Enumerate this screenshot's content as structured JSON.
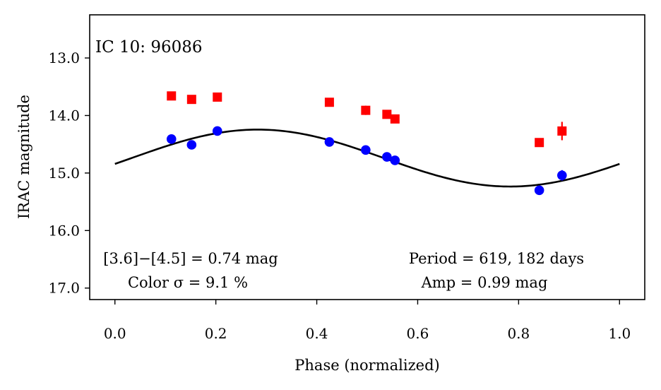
{
  "chart_data": {
    "type": "scatter",
    "title": "IC 10: 96086",
    "xlabel": "Phase (normalized)",
    "ylabel": "IRAC magnitude",
    "xlim": [
      -0.05,
      1.05
    ],
    "ylim": [
      17.2,
      12.25
    ],
    "y_inverted": true,
    "x_ticks": [
      {
        "value": 0.0,
        "label": "0.0"
      },
      {
        "value": 0.2,
        "label": "0.2"
      },
      {
        "value": 0.4,
        "label": "0.4"
      },
      {
        "value": 0.6,
        "label": "0.6"
      },
      {
        "value": 0.8,
        "label": "0.8"
      },
      {
        "value": 1.0,
        "label": "1.0"
      }
    ],
    "y_ticks": [
      {
        "value": 13.0,
        "label": "13.0"
      },
      {
        "value": 14.0,
        "label": "14.0"
      },
      {
        "value": 15.0,
        "label": "15.0"
      },
      {
        "value": 16.0,
        "label": "16.0"
      },
      {
        "value": 17.0,
        "label": "17.0"
      }
    ],
    "series": [
      {
        "name": "[4.5]",
        "marker": "square",
        "color": "#ff0000",
        "points": [
          {
            "x": 0.112,
            "y": 13.66,
            "err": 0.03
          },
          {
            "x": 0.152,
            "y": 13.72,
            "err": 0.03
          },
          {
            "x": 0.203,
            "y": 13.68,
            "err": 0.07
          },
          {
            "x": 0.425,
            "y": 13.77,
            "err": 0.03
          },
          {
            "x": 0.497,
            "y": 13.91,
            "err": 0.08
          },
          {
            "x": 0.539,
            "y": 13.98,
            "err": 0.03
          },
          {
            "x": 0.555,
            "y": 14.06,
            "err": 0.03
          },
          {
            "x": 0.841,
            "y": 14.47,
            "err": 0.03
          },
          {
            "x": 0.886,
            "y": 14.27,
            "err": 0.16
          }
        ]
      },
      {
        "name": "[3.6]",
        "marker": "circle",
        "color": "#0000ff",
        "points": [
          {
            "x": 0.112,
            "y": 14.41,
            "err": 0.03
          },
          {
            "x": 0.152,
            "y": 14.51,
            "err": 0.03
          },
          {
            "x": 0.203,
            "y": 14.27,
            "err": 0.07
          },
          {
            "x": 0.425,
            "y": 14.46,
            "err": 0.03
          },
          {
            "x": 0.497,
            "y": 14.6,
            "err": 0.03
          },
          {
            "x": 0.539,
            "y": 14.72,
            "err": 0.05
          },
          {
            "x": 0.555,
            "y": 14.78,
            "err": 0.03
          },
          {
            "x": 0.841,
            "y": 15.3,
            "err": 0.03
          },
          {
            "x": 0.886,
            "y": 15.04,
            "err": 0.09
          }
        ]
      }
    ],
    "fit": {
      "name": "sinusoidal fit",
      "color": "#000000",
      "mean": 14.74,
      "amplitude": 0.495,
      "phase_of_min_mag": 0.283
    },
    "annotations": {
      "color_line1": "[3.6]−[4.5] = 0.74 mag",
      "color_line2": "Color σ = 9.1 %",
      "period_line": "Period = 619, 182 days",
      "amp_line": "Amp = 0.99 mag"
    }
  }
}
